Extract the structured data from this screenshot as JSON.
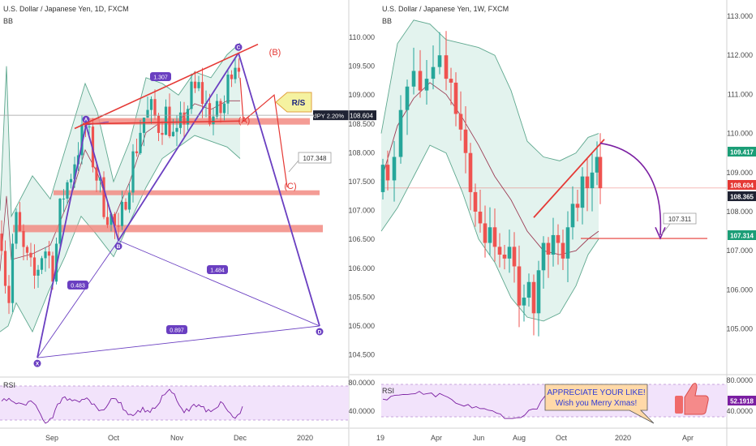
{
  "colors": {
    "up": "#26a69a",
    "down": "#ef5350",
    "bb_fill": "#e3f3ee",
    "bb_line": "#5fa88f",
    "bb_basis": "#9c3d55",
    "harmonic": "#6a3fc1",
    "trend": "#e53935",
    "zone": "#f28b82",
    "rsi_band": "#f2e3fb",
    "rsi_line": "#7b1fa2",
    "price_tag": "#1f2333",
    "tag_green": "#1b9e77",
    "callout_fill": "#ffd9a8",
    "callout_text": "#2f3bd6",
    "axis_text": "#4a4a4a"
  },
  "left": {
    "title": "U.S. Dollar / Japanese Yen, 1D, FXCM",
    "indicator": "BB",
    "rsi_label": "RSI",
    "xaxis_labels": [
      "Sep",
      "Oct",
      "Nov",
      "Dec",
      "2020"
    ],
    "yaxis_labels": [
      "110.000",
      "109.500",
      "109.000",
      "108.500",
      "108.000",
      "107.500",
      "107.000",
      "106.500",
      "106.000",
      "105.500",
      "105.000",
      "104.500"
    ],
    "rsi_axis_labels": [
      "80.0000",
      "40.0000"
    ],
    "points": [
      {
        "label": "X",
        "price": 104.45
      },
      {
        "label": "A",
        "price": 108.48
      },
      {
        "label": "B",
        "price": 106.48
      },
      {
        "label": "C",
        "price": 109.73
      },
      {
        "label": "D",
        "price": 105.0
      }
    ],
    "ratios": [
      "1.307",
      "0.483",
      "1.484",
      "0.897"
    ],
    "projection_labels": [
      "(A)",
      "(B)",
      "(C)"
    ],
    "rs_label": "R/S",
    "price_tag": "USDJPY 2.20%",
    "current_price": "108.604",
    "target_label": "107.348"
  },
  "right": {
    "title": "U.S. Dollar / Japanese Yen, 1W, FXCM",
    "indicator": "BB",
    "rsi_label": "RSI",
    "xaxis_labels": [
      "19",
      "Apr",
      "Jun",
      "Aug",
      "Oct",
      "2020",
      "Apr"
    ],
    "yaxis_labels": [
      "113.000",
      "112.000",
      "111.000",
      "110.000",
      "109.000",
      "108.000",
      "107.000",
      "106.000",
      "105.000"
    ],
    "rsi_axis_labels": [
      "80.0000",
      "40.0000"
    ],
    "price_tags": [
      {
        "value": "109.417",
        "kind": "green"
      },
      {
        "value": "108.604",
        "kind": "red"
      },
      {
        "value": "108.365",
        "kind": "dark"
      },
      {
        "value": "107.314",
        "kind": "green"
      }
    ],
    "rsi_tag": "52.1918",
    "target_label": "107.311",
    "callout_line1": "APPRECIATE YOUR LIKE!",
    "callout_line2": "Wish you Merry Xmas!"
  },
  "chart_data": [
    {
      "type": "candlestick",
      "title": "U.S. Dollar / Japanese Yen, 1D, FXCM",
      "ylim": [
        104.2,
        110.4
      ],
      "xlabels": [
        "Sep",
        "Oct",
        "Nov",
        "Dec",
        "2020"
      ],
      "levels": {
        "rs_zone": 108.55,
        "mid_zone": 107.3,
        "low_zone": 106.7,
        "current": 108.604,
        "target": 107.348
      },
      "harmonic_points": {
        "X": 104.45,
        "A": 108.48,
        "B": 106.48,
        "C": 109.73,
        "D": 105.0
      },
      "ratios": {
        "XA_BC": 0.483,
        "AB_C": 1.307,
        "BC_D": 1.484,
        "XA_D": 0.897
      },
      "rsi_ylim": [
        20,
        90
      ],
      "rsi_levels": [
        70,
        30
      ]
    },
    {
      "type": "candlestick",
      "title": "U.S. Dollar / Japanese Yen, 1W, FXCM",
      "ylim": [
        104.2,
        113.3
      ],
      "xlabels": [
        "19",
        "Apr",
        "Jun",
        "Aug",
        "Oct",
        "2020",
        "Apr"
      ],
      "levels": {
        "last": 109.417,
        "current": 108.604,
        "basis": 108.365,
        "target": 107.314
      },
      "rsi_value": 52.1918,
      "rsi_ylim": [
        20,
        90
      ],
      "rsi_levels": [
        70,
        30
      ]
    }
  ]
}
